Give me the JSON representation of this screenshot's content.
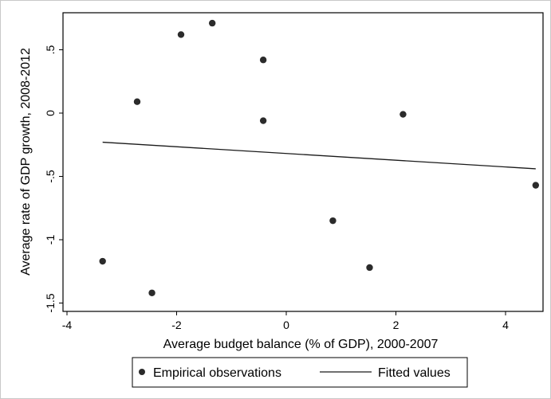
{
  "chart_data": {
    "type": "scatter",
    "title": "",
    "xlabel": "Average budget balance (% of GDP), 2000-2007",
    "ylabel": "Average rate of GDP growth, 2008-2012",
    "xlim": [
      -4,
      4.6
    ],
    "ylim": [
      -1.5,
      0.75
    ],
    "x_ticks": [
      -4,
      -2,
      0,
      2,
      4
    ],
    "y_ticks": [
      -1.5,
      -1,
      -0.5,
      0,
      0.5
    ],
    "x_tick_labels": [
      "-4",
      "-2",
      "0",
      "2",
      "4"
    ],
    "y_tick_labels": [
      "-1.5",
      "-1",
      "-.5",
      "0",
      ".5"
    ],
    "grid": false,
    "legend_position": "bottom",
    "series": [
      {
        "name": "Empirical observations",
        "type": "scatter",
        "color": "#2b2b2b",
        "x": [
          -3.35,
          -2.45,
          -2.72,
          -1.92,
          -1.35,
          -0.42,
          -0.42,
          0.85,
          1.52,
          2.13,
          4.55
        ],
        "y": [
          -1.17,
          -1.42,
          0.09,
          0.62,
          0.71,
          0.42,
          -0.06,
          -0.85,
          -1.22,
          -0.01,
          -0.57
        ]
      },
      {
        "name": "Fitted values",
        "type": "line",
        "color": "#1a1a1a",
        "x": [
          -3.35,
          4.55
        ],
        "y": [
          -0.23,
          -0.44
        ]
      }
    ]
  }
}
